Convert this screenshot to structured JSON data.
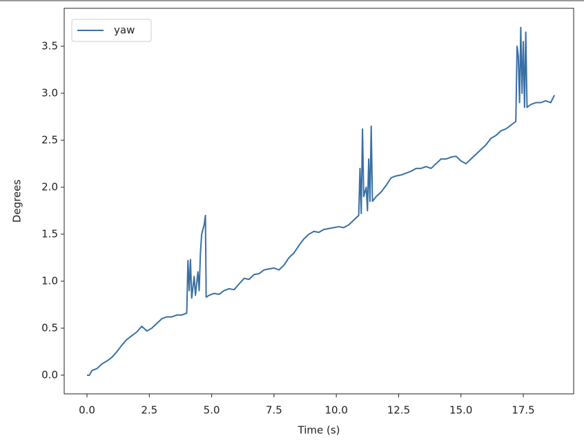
{
  "chart_data": {
    "type": "line",
    "xlabel": "Time (s)",
    "ylabel": "Degrees",
    "x": [
      0.0,
      0.1,
      0.2,
      0.4,
      0.6,
      0.8,
      1.0,
      1.2,
      1.4,
      1.6,
      1.8,
      2.0,
      2.2,
      2.4,
      2.6,
      2.8,
      3.0,
      3.2,
      3.4,
      3.6,
      3.8,
      4.0,
      4.05,
      4.1,
      4.15,
      4.2,
      4.3,
      4.35,
      4.45,
      4.5,
      4.55,
      4.6,
      4.7,
      4.75,
      4.78,
      4.9,
      5.1,
      5.3,
      5.5,
      5.7,
      5.9,
      6.1,
      6.3,
      6.5,
      6.7,
      6.9,
      7.1,
      7.3,
      7.5,
      7.7,
      7.9,
      8.1,
      8.3,
      8.5,
      8.7,
      8.9,
      9.1,
      9.3,
      9.5,
      9.7,
      9.9,
      10.1,
      10.3,
      10.5,
      10.7,
      10.9,
      10.95,
      11.0,
      11.05,
      11.1,
      11.2,
      11.25,
      11.3,
      11.35,
      11.4,
      11.45,
      11.6,
      11.8,
      12.0,
      12.2,
      12.4,
      12.6,
      12.8,
      13.0,
      13.2,
      13.4,
      13.6,
      13.8,
      14.0,
      14.2,
      14.4,
      14.6,
      14.8,
      15.0,
      15.2,
      15.4,
      15.6,
      15.8,
      16.0,
      16.2,
      16.4,
      16.6,
      16.8,
      17.0,
      17.2,
      17.25,
      17.3,
      17.35,
      17.4,
      17.45,
      17.5,
      17.55,
      17.6,
      17.65,
      17.8,
      18.0,
      18.2,
      18.4,
      18.6,
      18.75
    ],
    "series": [
      {
        "name": "yaw",
        "color": "#386fa4",
        "values": [
          0.0,
          0.0,
          0.05,
          0.07,
          0.12,
          0.15,
          0.19,
          0.25,
          0.32,
          0.38,
          0.42,
          0.46,
          0.52,
          0.47,
          0.5,
          0.55,
          0.6,
          0.62,
          0.62,
          0.64,
          0.64,
          0.66,
          1.22,
          0.9,
          1.23,
          0.82,
          1.05,
          0.85,
          1.1,
          0.9,
          1.3,
          1.5,
          1.6,
          1.7,
          0.83,
          0.85,
          0.87,
          0.86,
          0.9,
          0.92,
          0.91,
          0.97,
          1.03,
          1.02,
          1.07,
          1.08,
          1.12,
          1.13,
          1.14,
          1.12,
          1.17,
          1.25,
          1.3,
          1.38,
          1.45,
          1.5,
          1.53,
          1.52,
          1.55,
          1.56,
          1.57,
          1.58,
          1.57,
          1.6,
          1.65,
          1.7,
          2.2,
          1.72,
          2.62,
          1.9,
          2.0,
          1.75,
          2.3,
          1.85,
          2.65,
          1.85,
          1.9,
          1.95,
          2.02,
          2.1,
          2.12,
          2.13,
          2.15,
          2.17,
          2.2,
          2.2,
          2.22,
          2.2,
          2.25,
          2.3,
          2.3,
          2.32,
          2.33,
          2.28,
          2.25,
          2.3,
          2.35,
          2.4,
          2.45,
          2.52,
          2.55,
          2.6,
          2.62,
          2.66,
          2.7,
          3.5,
          3.4,
          2.9,
          3.7,
          3.0,
          3.55,
          2.85,
          3.65,
          2.85,
          2.88,
          2.9,
          2.9,
          2.92,
          2.9,
          2.98
        ]
      }
    ],
    "xlim": [
      -0.914,
      19.52
    ],
    "ylim": [
      -0.199,
      3.904
    ],
    "xticks": [
      {
        "value": 0,
        "label": "0.0"
      },
      2.5,
      {
        "value": 5,
        "label": "5.0"
      },
      7.5,
      {
        "value": 10,
        "label": "10.0"
      },
      12.5,
      {
        "value": 15,
        "label": "15.0"
      },
      17.5
    ],
    "yticks": [
      {
        "value": 0,
        "label": "0.0"
      },
      0.5,
      {
        "value": 1,
        "label": "1.0"
      },
      1.5,
      {
        "value": 2,
        "label": "2.0"
      },
      2.5,
      {
        "value": 3,
        "label": "3.0"
      },
      3.5
    ],
    "legend": "upper left",
    "grid": false
  }
}
